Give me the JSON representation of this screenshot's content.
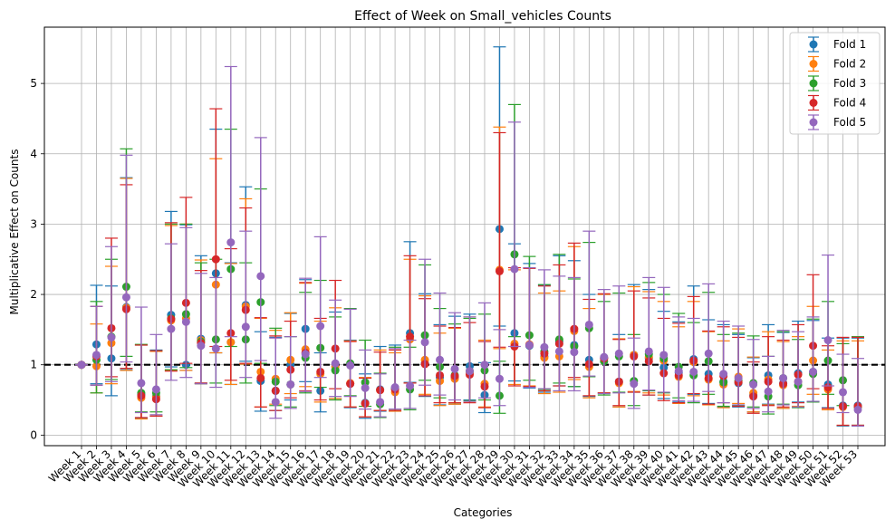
{
  "chart_data": {
    "type": "scatter",
    "title": "Effect of Week on Small_vehicles Counts",
    "xlabel": "Categories",
    "ylabel": "Multiplicative Effect on Counts",
    "ylim": [
      -0.15,
      5.8
    ],
    "yticks": [
      0,
      1,
      2,
      3,
      4,
      5
    ],
    "grid": true,
    "legend_position": "top-right",
    "reference_line": {
      "y": 1,
      "style": "dashed",
      "color": "#000000"
    },
    "categories": [
      "Week 1",
      "Week 2",
      "Week 3",
      "Week 4",
      "Week 5",
      "Week 6",
      "Week 7",
      "Week 8",
      "Week 9",
      "Week 10",
      "Week 11",
      "Week 12",
      "Week 13",
      "Week 14",
      "Week 15",
      "Week 16",
      "Week 17",
      "Week 18",
      "Week 19",
      "Week 20",
      "Week 21",
      "Week 22",
      "Week 23",
      "Week 24",
      "Week 25",
      "Week 26",
      "Week 27",
      "Week 28",
      "Week 29",
      "Week 30",
      "Week 31",
      "Week 32",
      "Week 33",
      "Week 34",
      "Week 35",
      "Week 36",
      "Week 37",
      "Week 38",
      "Week 39",
      "Week 40",
      "Week 41",
      "Week 42",
      "Week 43",
      "Week 44",
      "Week 45",
      "Week 46",
      "Week 47",
      "Week 48",
      "Week 49",
      "Week 50",
      "Week 51",
      "Week 52",
      "Week 53"
    ],
    "series": [
      {
        "name": "Fold 1",
        "color": "#1f77b4",
        "values": [
          1.0,
          1.29,
          1.09,
          1.82,
          0.58,
          0.55,
          1.71,
          1.0,
          1.37,
          2.3,
          1.32,
          1.85,
          0.77,
          0.63,
          1.0,
          1.51,
          0.63,
          0.93,
          0.73,
          0.46,
          0.65,
          0.66,
          1.45,
          1.02,
          0.82,
          0.82,
          0.98,
          0.57,
          2.93,
          1.45,
          1.27,
          1.12,
          1.33,
          1.28,
          1.07,
          1.1,
          0.76,
          1.14,
          1.09,
          0.96,
          0.89,
          1.08,
          0.87,
          0.76,
          0.74,
          0.57,
          0.85,
          0.74,
          0.88,
          0.9,
          0.72,
          0.42,
          0.42
        ],
        "lower": [
          1.0,
          0.73,
          0.56,
          0.93,
          0.24,
          0.27,
          0.97,
          0.92,
          0.74,
          1.17,
          0.72,
          1.05,
          0.34,
          0.35,
          0.5,
          0.76,
          0.33,
          0.52,
          0.39,
          0.24,
          0.34,
          0.34,
          0.75,
          0.55,
          0.43,
          0.44,
          0.5,
          0.32,
          1.55,
          0.77,
          0.67,
          0.61,
          0.7,
          0.69,
          0.55,
          0.6,
          0.4,
          0.61,
          0.57,
          0.52,
          0.47,
          0.58,
          0.45,
          0.4,
          0.4,
          0.33,
          0.44,
          0.38,
          0.47,
          0.48,
          0.39,
          0.13,
          0.13
        ],
        "upper": [
          1.0,
          2.13,
          2.12,
          3.66,
          1.28,
          1.21,
          3.18,
          2.99,
          2.55,
          4.35,
          2.45,
          3.53,
          1.47,
          1.39,
          1.73,
          2.21,
          1.17,
          1.75,
          1.35,
          0.87,
          1.26,
          1.28,
          2.75,
          2.01,
          1.57,
          1.69,
          1.72,
          1.03,
          5.52,
          2.72,
          2.44,
          2.13,
          2.55,
          2.48,
          2.0,
          2.0,
          1.43,
          2.14,
          2.07,
          1.76,
          1.61,
          2.12,
          1.64,
          1.57,
          1.43,
          1.1,
          1.57,
          1.46,
          1.62,
          1.63,
          1.38,
          1.38,
          1.38
        ]
      },
      {
        "name": "Fold 2",
        "color": "#ff7f0e",
        "values": [
          1.0,
          0.98,
          1.31,
          1.81,
          0.53,
          0.54,
          1.63,
          1.66,
          1.35,
          2.14,
          1.32,
          1.83,
          0.9,
          0.8,
          1.07,
          1.22,
          0.87,
          0.97,
          0.74,
          0.45,
          0.64,
          0.61,
          1.36,
          1.07,
          0.77,
          0.8,
          0.89,
          0.73,
          2.35,
          1.3,
          1.29,
          1.1,
          1.12,
          1.48,
          0.97,
          1.09,
          0.74,
          1.14,
          1.11,
          1.06,
          0.83,
          1.04,
          0.79,
          0.72,
          0.83,
          0.6,
          0.79,
          0.71,
          0.76,
          1.06,
          0.65,
          0.4,
          0.4
        ],
        "lower": [
          1.0,
          0.6,
          0.73,
          0.92,
          0.23,
          0.27,
          0.92,
          0.92,
          0.73,
          1.17,
          0.72,
          1.01,
          0.4,
          0.44,
          0.59,
          0.69,
          0.47,
          0.52,
          0.4,
          0.26,
          0.35,
          0.34,
          0.74,
          0.58,
          0.42,
          0.44,
          0.48,
          0.4,
          1.23,
          0.72,
          0.7,
          0.59,
          0.61,
          0.79,
          0.53,
          0.6,
          0.4,
          0.62,
          0.6,
          0.57,
          0.45,
          0.56,
          0.43,
          0.39,
          0.45,
          0.33,
          0.43,
          0.38,
          0.41,
          0.58,
          0.36,
          0.14,
          0.14
        ],
        "upper": [
          1.0,
          1.58,
          2.4,
          3.65,
          1.28,
          1.19,
          2.98,
          3.0,
          2.49,
          3.93,
          2.44,
          3.36,
          1.66,
          1.49,
          1.74,
          2.16,
          1.62,
          1.81,
          1.34,
          0.82,
          1.21,
          1.17,
          2.5,
          1.98,
          1.45,
          1.52,
          1.68,
          1.35,
          4.38,
          2.35,
          2.38,
          2.02,
          2.05,
          2.68,
          1.8,
          2.0,
          1.37,
          2.11,
          2.04,
          1.9,
          1.54,
          1.9,
          1.47,
          1.34,
          1.51,
          1.11,
          1.47,
          1.33,
          1.4,
          1.83,
          1.21,
          1.34,
          1.34
        ]
      },
      {
        "name": "Fold 3",
        "color": "#2ca02c",
        "values": [
          1.0,
          1.07,
          1.4,
          2.11,
          0.6,
          0.6,
          1.66,
          1.72,
          1.33,
          1.36,
          2.36,
          1.36,
          1.89,
          0.76,
          0.72,
          1.1,
          1.24,
          0.92,
          1.02,
          0.75,
          0.44,
          0.67,
          0.65,
          1.42,
          0.97,
          0.85,
          0.91,
          0.92,
          0.56,
          2.57,
          1.42,
          1.19,
          1.36,
          1.26,
          1.52,
          1.05,
          1.12,
          0.77,
          1.15,
          1.09,
          0.97,
          0.85,
          1.05,
          0.75,
          0.77,
          0.74,
          0.55,
          0.81,
          0.71,
          0.87,
          1.06,
          0.78,
          0.4
        ],
        "lower": [
          1.0,
          0.6,
          0.79,
          1.12,
          0.33,
          0.33,
          0.93,
          0.96,
          0.73,
          0.74,
          1.26,
          0.74,
          1.02,
          0.42,
          0.4,
          0.6,
          0.68,
          0.5,
          0.56,
          0.41,
          0.25,
          0.37,
          0.36,
          0.78,
          0.53,
          0.46,
          0.49,
          0.5,
          0.31,
          1.4,
          0.78,
          0.65,
          0.74,
          0.69,
          0.83,
          0.57,
          0.61,
          0.42,
          0.63,
          0.6,
          0.53,
          0.46,
          0.58,
          0.41,
          0.42,
          0.4,
          0.3,
          0.44,
          0.39,
          0.47,
          0.58,
          0.42,
          0.14
        ],
        "upper": [
          1.0,
          1.9,
          2.5,
          4.07,
          1.29,
          1.2,
          3.0,
          3.0,
          2.45,
          2.5,
          4.35,
          2.45,
          3.5,
          1.52,
          1.4,
          2.03,
          2.2,
          1.68,
          1.8,
          1.35,
          0.88,
          1.25,
          1.25,
          2.42,
          1.8,
          1.58,
          1.66,
          1.72,
          1.05,
          4.7,
          2.54,
          2.14,
          2.57,
          2.22,
          2.74,
          1.9,
          2.02,
          1.43,
          2.17,
          2.0,
          1.73,
          1.6,
          2.03,
          1.43,
          1.45,
          1.41,
          1.12,
          1.47,
          1.36,
          1.65,
          1.9,
          1.3,
          1.4
        ]
      },
      {
        "name": "Fold 4",
        "color": "#d62728",
        "values": [
          1.0,
          1.12,
          1.52,
          1.79,
          0.56,
          0.51,
          1.65,
          1.88,
          1.31,
          2.5,
          1.45,
          1.78,
          0.81,
          0.63,
          0.93,
          1.17,
          0.9,
          1.23,
          0.73,
          0.45,
          0.64,
          0.65,
          1.4,
          1.01,
          0.85,
          0.84,
          0.86,
          0.69,
          2.33,
          1.26,
          1.28,
          1.16,
          1.3,
          1.51,
          1.01,
          1.09,
          0.76,
          1.12,
          1.05,
          0.88,
          0.85,
          1.06,
          0.81,
          0.84,
          0.75,
          0.55,
          0.76,
          0.73,
          0.86,
          1.27,
          0.68,
          0.41,
          0.41
        ],
        "lower": [
          1.0,
          0.71,
          0.83,
          0.95,
          0.25,
          0.27,
          0.91,
          1.02,
          0.74,
          1.26,
          0.78,
          1.02,
          0.4,
          0.35,
          0.53,
          0.63,
          0.5,
          0.66,
          0.4,
          0.26,
          0.35,
          0.35,
          0.74,
          0.56,
          0.46,
          0.46,
          0.46,
          0.39,
          1.25,
          0.7,
          0.69,
          0.63,
          0.7,
          0.82,
          0.56,
          0.6,
          0.42,
          0.61,
          0.57,
          0.49,
          0.46,
          0.59,
          0.44,
          0.46,
          0.41,
          0.31,
          0.42,
          0.4,
          0.46,
          0.66,
          0.38,
          0.14,
          0.14
        ],
        "upper": [
          1.0,
          1.83,
          2.8,
          3.56,
          1.28,
          1.2,
          3.02,
          3.38,
          2.34,
          4.64,
          2.65,
          3.23,
          1.67,
          1.41,
          1.62,
          2.17,
          1.66,
          2.2,
          1.33,
          0.81,
          1.18,
          1.21,
          2.55,
          1.94,
          1.55,
          1.53,
          1.6,
          1.33,
          4.3,
          2.38,
          2.37,
          2.12,
          2.42,
          2.73,
          1.93,
          2.01,
          1.36,
          2.05,
          1.95,
          1.66,
          1.59,
          1.97,
          1.48,
          1.54,
          1.39,
          1.04,
          1.4,
          1.35,
          1.57,
          2.28,
          1.27,
          1.39,
          1.39
        ]
      },
      {
        "name": "Fold 5",
        "color": "#9467bd",
        "values": [
          1.0,
          1.14,
          1.39,
          1.96,
          0.74,
          0.65,
          1.51,
          1.61,
          1.27,
          1.23,
          2.74,
          1.54,
          2.26,
          0.47,
          0.72,
          1.15,
          1.55,
          1.02,
          0.99,
          0.67,
          0.47,
          0.68,
          0.7,
          1.32,
          1.07,
          0.94,
          0.91,
          1.0,
          0.8,
          2.36,
          1.28,
          1.25,
          1.19,
          1.18,
          1.57,
          1.11,
          1.16,
          0.73,
          1.19,
          1.14,
          0.91,
          0.9,
          1.16,
          0.87,
          0.81,
          0.72,
          0.62,
          0.81,
          0.76,
          0.9,
          1.35,
          0.61,
          0.36
        ],
        "lower": [
          1.0,
          0.71,
          0.76,
          1.04,
          0.32,
          0.29,
          0.78,
          0.82,
          0.73,
          0.68,
          1.4,
          0.82,
          1.06,
          0.24,
          0.38,
          0.62,
          0.82,
          0.55,
          0.55,
          0.37,
          0.26,
          0.37,
          0.38,
          0.71,
          0.57,
          0.5,
          0.48,
          0.53,
          0.42,
          1.26,
          0.68,
          0.66,
          0.63,
          0.63,
          0.84,
          0.59,
          0.6,
          0.38,
          0.64,
          0.61,
          0.49,
          0.48,
          0.62,
          0.46,
          0.43,
          0.38,
          0.33,
          0.43,
          0.4,
          0.48,
          0.7,
          0.32,
          0.13
        ],
        "upper": [
          1.0,
          1.83,
          2.68,
          3.98,
          1.82,
          1.43,
          2.72,
          2.95,
          2.3,
          2.24,
          5.24,
          2.9,
          4.23,
          1.38,
          1.4,
          2.23,
          2.82,
          1.92,
          1.79,
          1.21,
          0.87,
          1.23,
          1.35,
          2.5,
          2.02,
          1.74,
          1.68,
          1.88,
          1.5,
          4.45,
          2.38,
          2.35,
          2.26,
          2.24,
          2.9,
          2.07,
          2.12,
          1.38,
          2.24,
          2.1,
          1.68,
          1.66,
          2.15,
          1.62,
          1.55,
          1.36,
          1.12,
          1.49,
          1.47,
          1.68,
          2.56,
          1.15,
          1.09
        ]
      }
    ]
  }
}
